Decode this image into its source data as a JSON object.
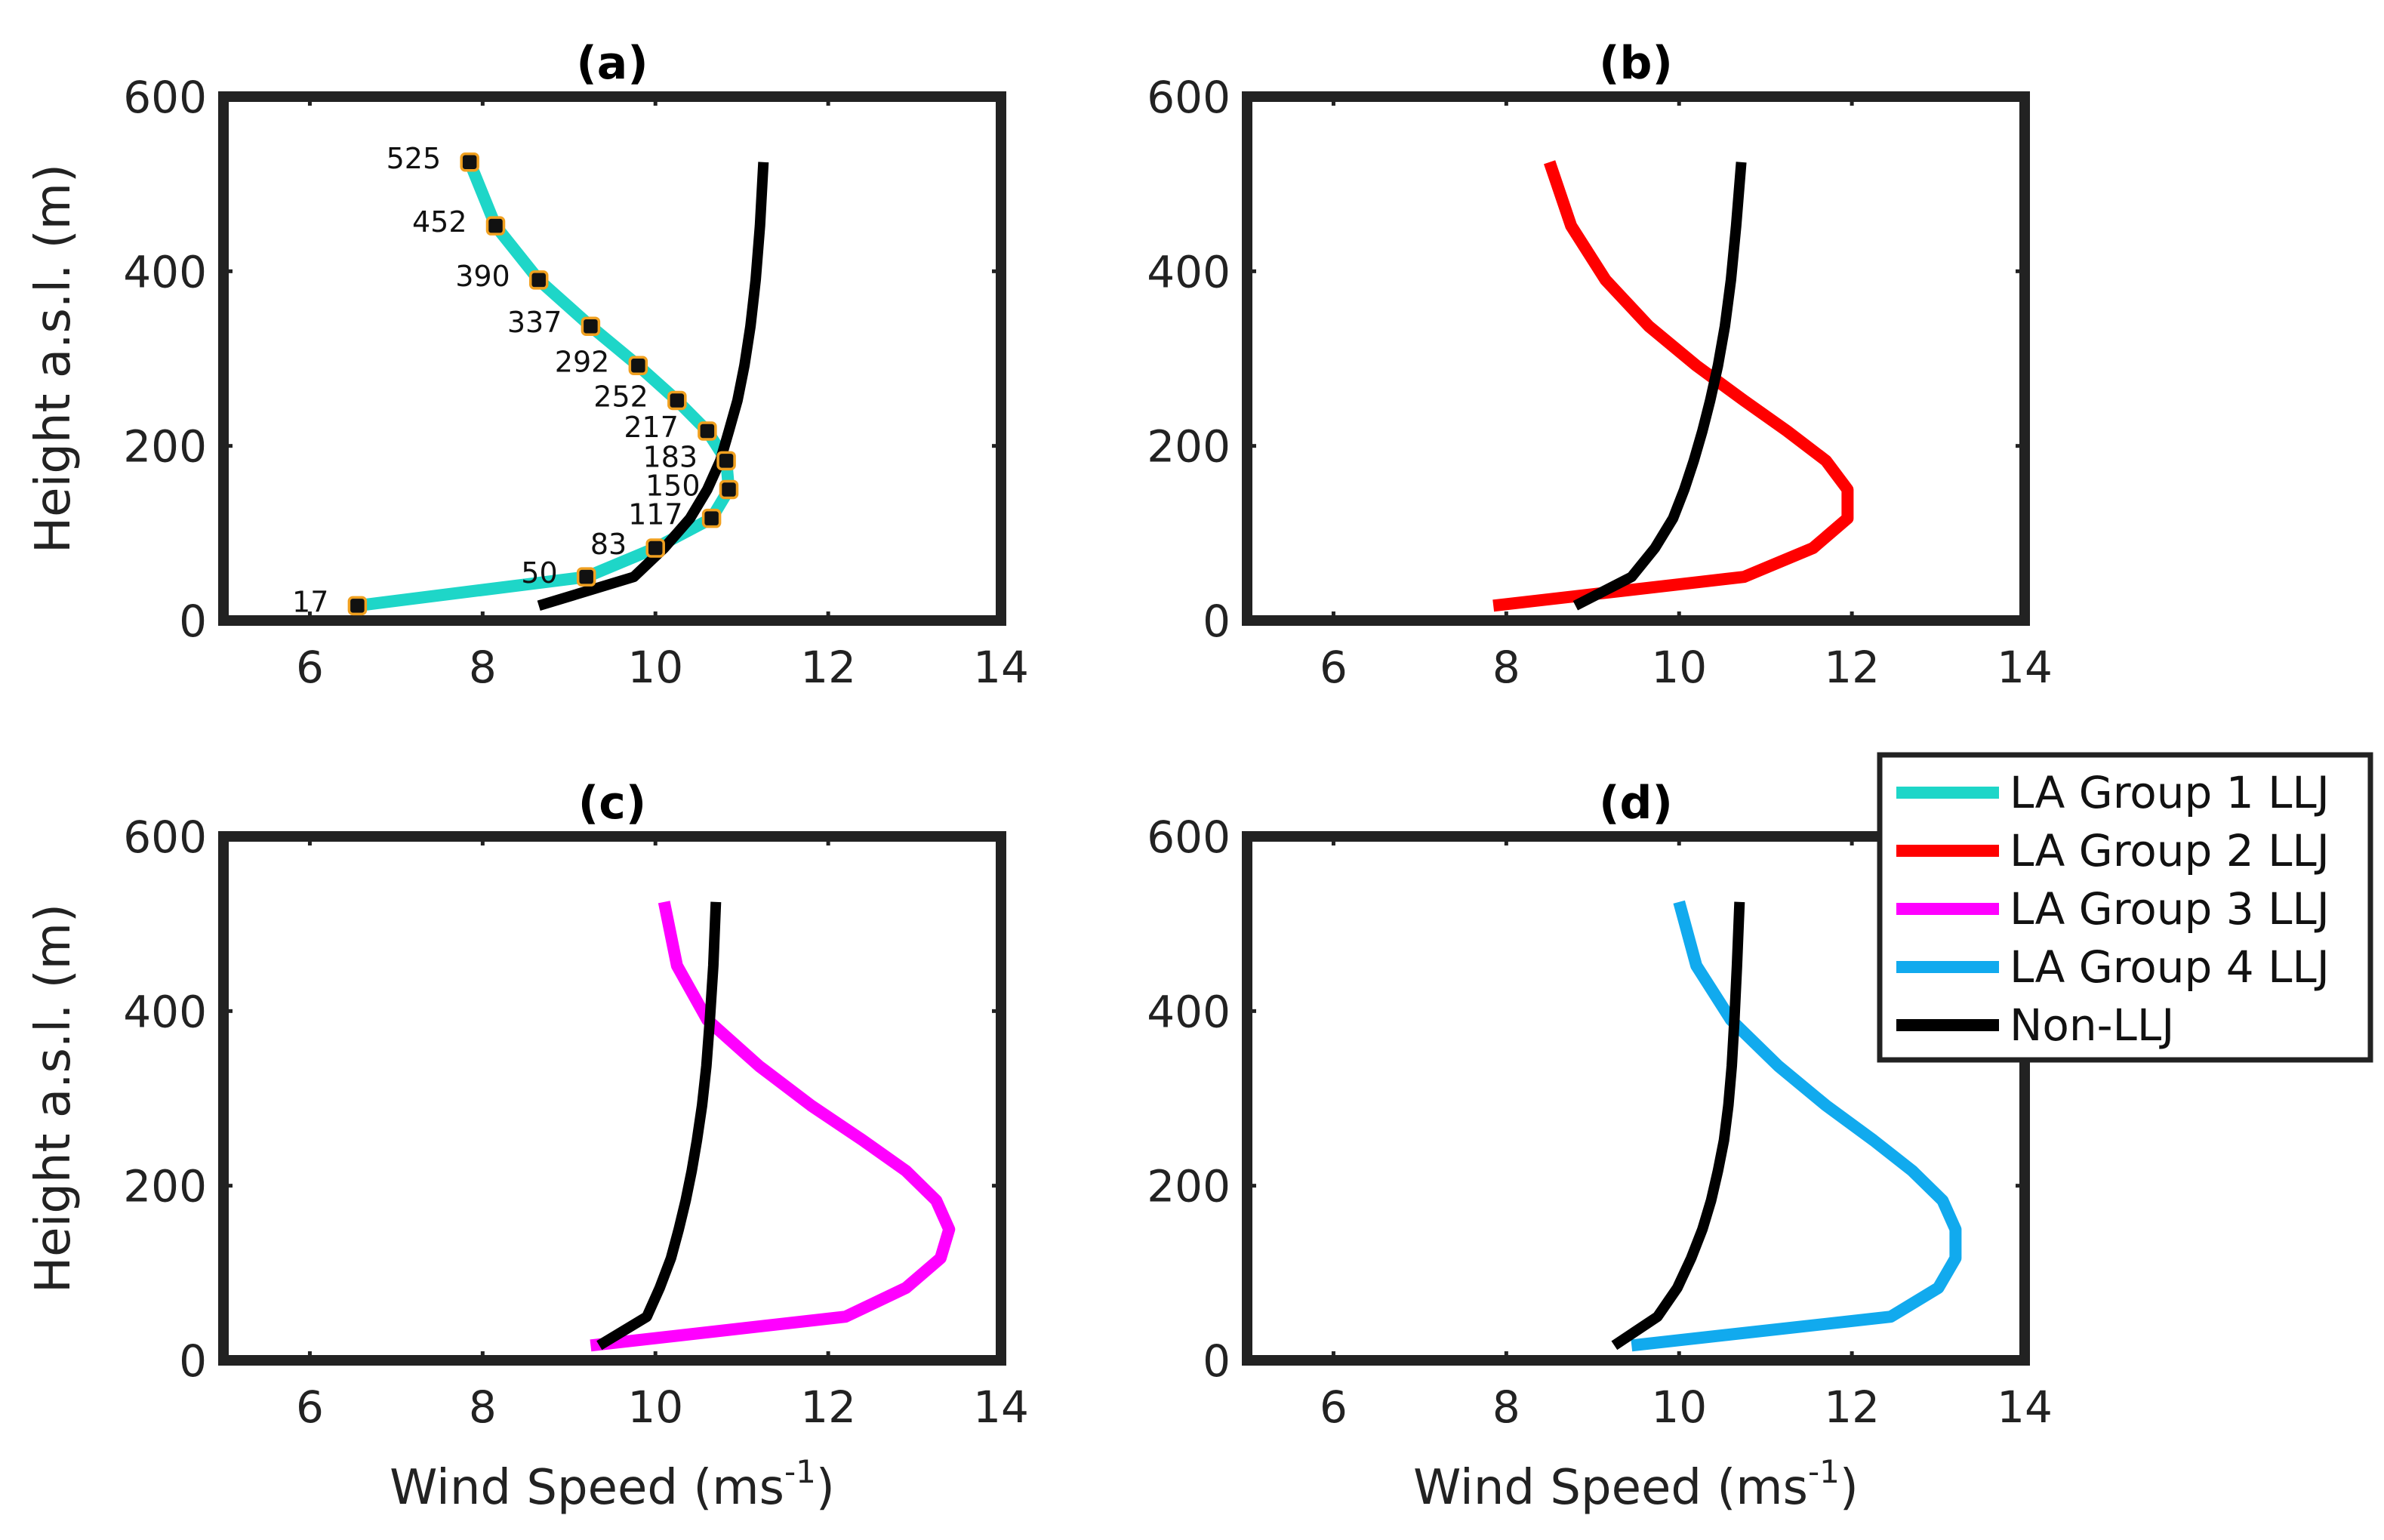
{
  "chart_data": {
    "type": "line",
    "ylabel": "Height a.s.l. (m)",
    "xlabel_main": "Wind Speed (ms",
    "xlabel_sup": "-1",
    "xlabel_close": ")",
    "xlim": [
      5,
      14
    ],
    "ylim": [
      0,
      600
    ],
    "xticks": [
      "6",
      "8",
      "10",
      "12",
      "14"
    ],
    "yticks": [
      "0",
      "200",
      "400",
      "600"
    ],
    "heights": [
      17,
      50,
      83,
      117,
      150,
      183,
      217,
      252,
      292,
      337,
      390,
      452,
      525
    ],
    "height_labels": [
      "17",
      "50",
      "83",
      "117",
      "150",
      "183",
      "217",
      "252",
      "292",
      "337",
      "390",
      "452",
      "525"
    ],
    "non_llj": {
      "name": "Non-LLJ",
      "color": "#000000",
      "panels": [
        [
          8.65,
          9.75,
          10.1,
          10.4,
          10.6,
          10.75,
          10.85,
          10.95,
          11.03,
          11.1,
          11.16,
          11.21,
          11.25
        ],
        [
          8.8,
          9.45,
          9.72,
          9.93,
          10.06,
          10.17,
          10.27,
          10.36,
          10.45,
          10.53,
          10.6,
          10.66,
          10.72
        ],
        [
          9.35,
          9.9,
          10.05,
          10.18,
          10.27,
          10.35,
          10.42,
          10.48,
          10.54,
          10.59,
          10.63,
          10.67,
          10.7
        ],
        [
          9.25,
          9.75,
          9.98,
          10.14,
          10.27,
          10.37,
          10.45,
          10.52,
          10.57,
          10.61,
          10.64,
          10.67,
          10.7
        ]
      ]
    },
    "panels": [
      {
        "title": "(a)",
        "series": [
          {
            "name": "LA Group 1 LLJ",
            "color": "#1ed6c8",
            "values": [
              6.55,
              9.2,
              10.0,
              10.65,
              10.85,
              10.82,
              10.6,
              10.25,
              9.8,
              9.25,
              8.65,
              8.15,
              7.85
            ]
          }
        ]
      },
      {
        "title": "(b)",
        "series": [
          {
            "name": "LA Group 2 LLJ",
            "color": "#ff0000",
            "values": [
              7.85,
              10.75,
              11.55,
              11.95,
              11.95,
              11.7,
              11.25,
              10.75,
              10.2,
              9.65,
              9.15,
              8.75,
              8.5
            ]
          }
        ]
      },
      {
        "title": "(c)",
        "series": [
          {
            "name": "LA Group 3 LLJ",
            "color": "#ff00ff",
            "values": [
              9.25,
              12.2,
              12.9,
              13.3,
              13.4,
              13.25,
              12.9,
              12.4,
              11.8,
              11.2,
              10.6,
              10.25,
              10.1
            ]
          }
        ]
      },
      {
        "title": "(d)",
        "series": [
          {
            "name": "LA Group 4 LLJ",
            "color": "#11aaee",
            "values": [
              9.45,
              12.45,
              13.0,
              13.2,
              13.2,
              13.05,
              12.7,
              12.25,
              11.7,
              11.15,
              10.6,
              10.2,
              10.0
            ]
          }
        ]
      }
    ],
    "legend": {
      "placement": "right",
      "entries": [
        {
          "label": "LA Group 1 LLJ",
          "color": "#1ed6c8"
        },
        {
          "label": "LA Group 2 LLJ",
          "color": "#ff0000"
        },
        {
          "label": "LA Group 3 LLJ",
          "color": "#ff00ff"
        },
        {
          "label": "LA Group 4 LLJ",
          "color": "#11aaee"
        },
        {
          "label": "Non-LLJ",
          "color": "#000000"
        }
      ]
    }
  }
}
